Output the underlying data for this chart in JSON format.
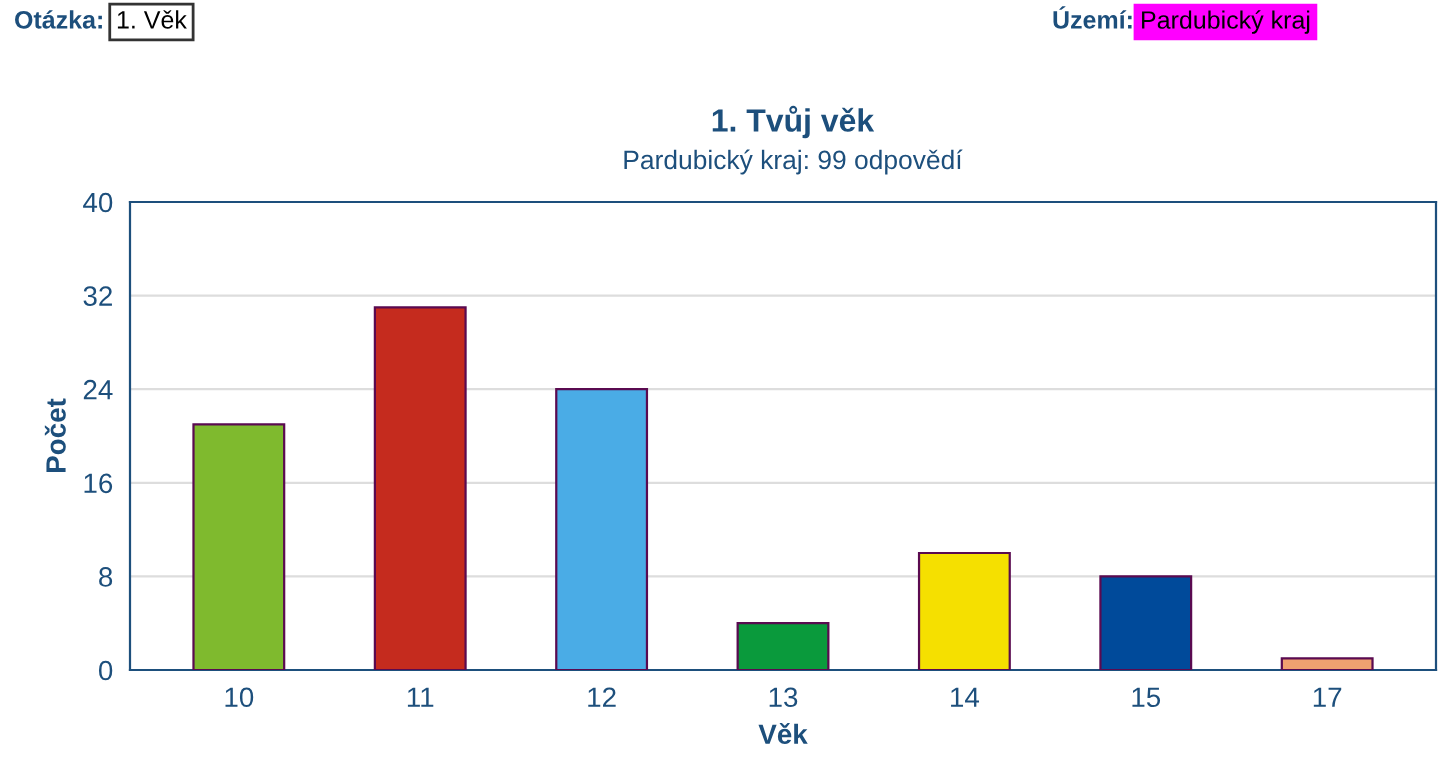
{
  "chart_data": {
    "type": "bar",
    "title": "1. Tvůj věk",
    "subtitle": "Pardubický kraj: 99 odpovědí",
    "xlabel": "Věk",
    "ylabel": "Počet",
    "categories": [
      "10",
      "11",
      "12",
      "13",
      "14",
      "15",
      "17"
    ],
    "values": [
      21,
      31,
      24,
      4,
      10,
      8,
      1
    ],
    "colors": [
      "#7fba2e",
      "#c52b1e",
      "#4aace6",
      "#0a9a3c",
      "#f5e000",
      "#004a9a",
      "#f0a070"
    ],
    "ylim": [
      0,
      40
    ],
    "yticks": [
      0,
      8,
      16,
      24,
      32,
      40
    ],
    "grid": "y",
    "annotations": [
      "Otázka:",
      "1. Věk",
      "Území:",
      "Pardubický kraj"
    ]
  }
}
